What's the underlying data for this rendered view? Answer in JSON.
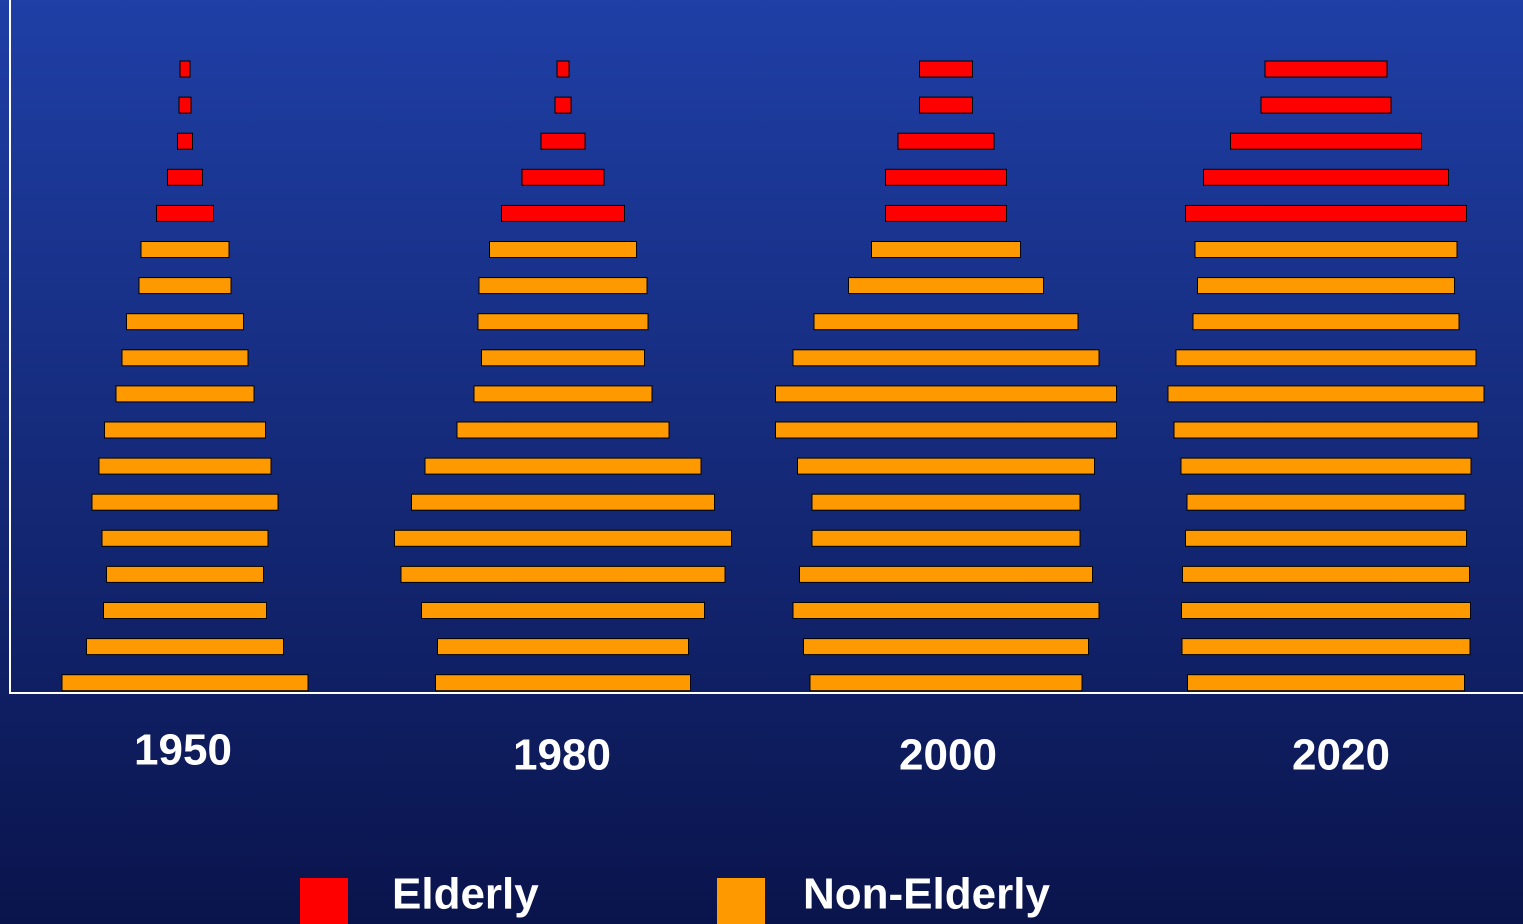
{
  "chart_data": {
    "type": "pyramid",
    "categories": [
      "1950",
      "1980",
      "2000",
      "2020"
    ],
    "series": [
      {
        "name": "Elderly",
        "color": "#ff0000",
        "values": [
          [
            10,
            12,
            15,
            35,
            57
          ],
          [
            12,
            16,
            44,
            82,
            123
          ],
          [
            53,
            53,
            96,
            121,
            121
          ],
          [
            122,
            130,
            191,
            245,
            281
          ]
        ]
      },
      {
        "name": "Non-Elderly",
        "color": "#ff9900",
        "values": [
          [
            88,
            92,
            117,
            126,
            138,
            161,
            172,
            186,
            166,
            157,
            163,
            197,
            246
          ],
          [
            147,
            168,
            170,
            163,
            178,
            212,
            276,
            303,
            337,
            324,
            283,
            251,
            255
          ],
          [
            149,
            195,
            264,
            306,
            341,
            341,
            297,
            268,
            268,
            293,
            306,
            285,
            272
          ],
          [
            262,
            257,
            266,
            300,
            316,
            304,
            290,
            278,
            281,
            287,
            289,
            288,
            277
          ]
        ]
      }
    ]
  }
}
